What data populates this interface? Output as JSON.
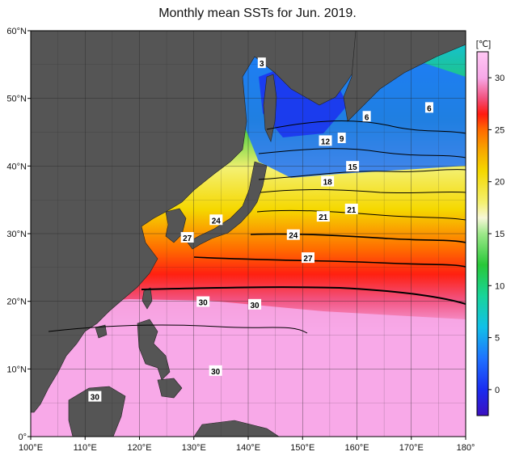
{
  "title": "Monthly mean SSTs for Jun. 2019.",
  "map": {
    "lon_range": [
      100,
      180
    ],
    "lat_range": [
      0,
      60
    ],
    "lon_ticks": [
      {
        "value": 100,
        "label": "100°E"
      },
      {
        "value": 110,
        "label": "110°E"
      },
      {
        "value": 120,
        "label": "120°E"
      },
      {
        "value": 130,
        "label": "130°E"
      },
      {
        "value": 140,
        "label": "140°E"
      },
      {
        "value": 150,
        "label": "150°E"
      },
      {
        "value": 160,
        "label": "160°E"
      },
      {
        "value": 170,
        "label": "170°E"
      },
      {
        "value": 180,
        "label": "180°"
      }
    ],
    "lat_ticks": [
      {
        "value": 0,
        "label": "0°"
      },
      {
        "value": 10,
        "label": "10°N"
      },
      {
        "value": 20,
        "label": "20°N"
      },
      {
        "value": 30,
        "label": "30°N"
      },
      {
        "value": 40,
        "label": "40°N"
      },
      {
        "value": 50,
        "label": "50°N"
      },
      {
        "value": 60,
        "label": "60°N"
      }
    ],
    "land_color": "#555555",
    "grid_color": "#222222",
    "contour_color": "#000000",
    "isotherms": [
      {
        "label": "3",
        "lon": 142.5,
        "lat": 55.2
      },
      {
        "label": "6",
        "lon": 173.3,
        "lat": 48.6
      },
      {
        "label": "6",
        "lon": 161.8,
        "lat": 47.3
      },
      {
        "label": "12",
        "lon": 154.2,
        "lat": 43.7
      },
      {
        "label": "9",
        "lon": 157.2,
        "lat": 44.1
      },
      {
        "label": "15",
        "lon": 159.2,
        "lat": 39.9
      },
      {
        "label": "18",
        "lon": 154.6,
        "lat": 37.7
      },
      {
        "label": "21",
        "lon": 153.8,
        "lat": 32.5
      },
      {
        "label": "21",
        "lon": 159.0,
        "lat": 33.6
      },
      {
        "label": "24",
        "lon": 134.1,
        "lat": 32.0
      },
      {
        "label": "27",
        "lon": 128.8,
        "lat": 29.4
      },
      {
        "label": "24",
        "lon": 148.3,
        "lat": 29.8
      },
      {
        "label": "27",
        "lon": 151.0,
        "lat": 26.4
      },
      {
        "label": "30",
        "lon": 131.7,
        "lat": 19.9
      },
      {
        "label": "30",
        "lon": 141.2,
        "lat": 19.5
      },
      {
        "label": "30",
        "lon": 134.0,
        "lat": 9.7
      },
      {
        "label": "30",
        "lon": 111.8,
        "lat": 5.9
      }
    ]
  },
  "colorbar": {
    "unit": "[℃]",
    "range": [
      -2.5,
      32.5
    ],
    "ticks": [
      {
        "value": 0,
        "label": "0"
      },
      {
        "value": 5,
        "label": "5"
      },
      {
        "value": 10,
        "label": "10"
      },
      {
        "value": 15,
        "label": "15"
      },
      {
        "value": 20,
        "label": "20"
      },
      {
        "value": 25,
        "label": "25"
      },
      {
        "value": 30,
        "label": "30"
      }
    ],
    "stops": [
      {
        "value": -2.5,
        "color": "#3b10c0"
      },
      {
        "value": 0,
        "color": "#1a2cf0"
      },
      {
        "value": 3,
        "color": "#1e72ff"
      },
      {
        "value": 6,
        "color": "#12c0e8"
      },
      {
        "value": 9,
        "color": "#18d49a"
      },
      {
        "value": 12,
        "color": "#28c838"
      },
      {
        "value": 15,
        "color": "#9ee88a"
      },
      {
        "value": 16.5,
        "color": "#f7f7d8"
      },
      {
        "value": 18,
        "color": "#f4f070"
      },
      {
        "value": 21,
        "color": "#f5d800"
      },
      {
        "value": 23,
        "color": "#f7a800"
      },
      {
        "value": 25,
        "color": "#ff6a00"
      },
      {
        "value": 26.5,
        "color": "#ff1a10"
      },
      {
        "value": 28,
        "color": "#f2507c"
      },
      {
        "value": 30,
        "color": "#f7a8e8"
      },
      {
        "value": 32.5,
        "color": "#ffc8f4"
      }
    ]
  }
}
